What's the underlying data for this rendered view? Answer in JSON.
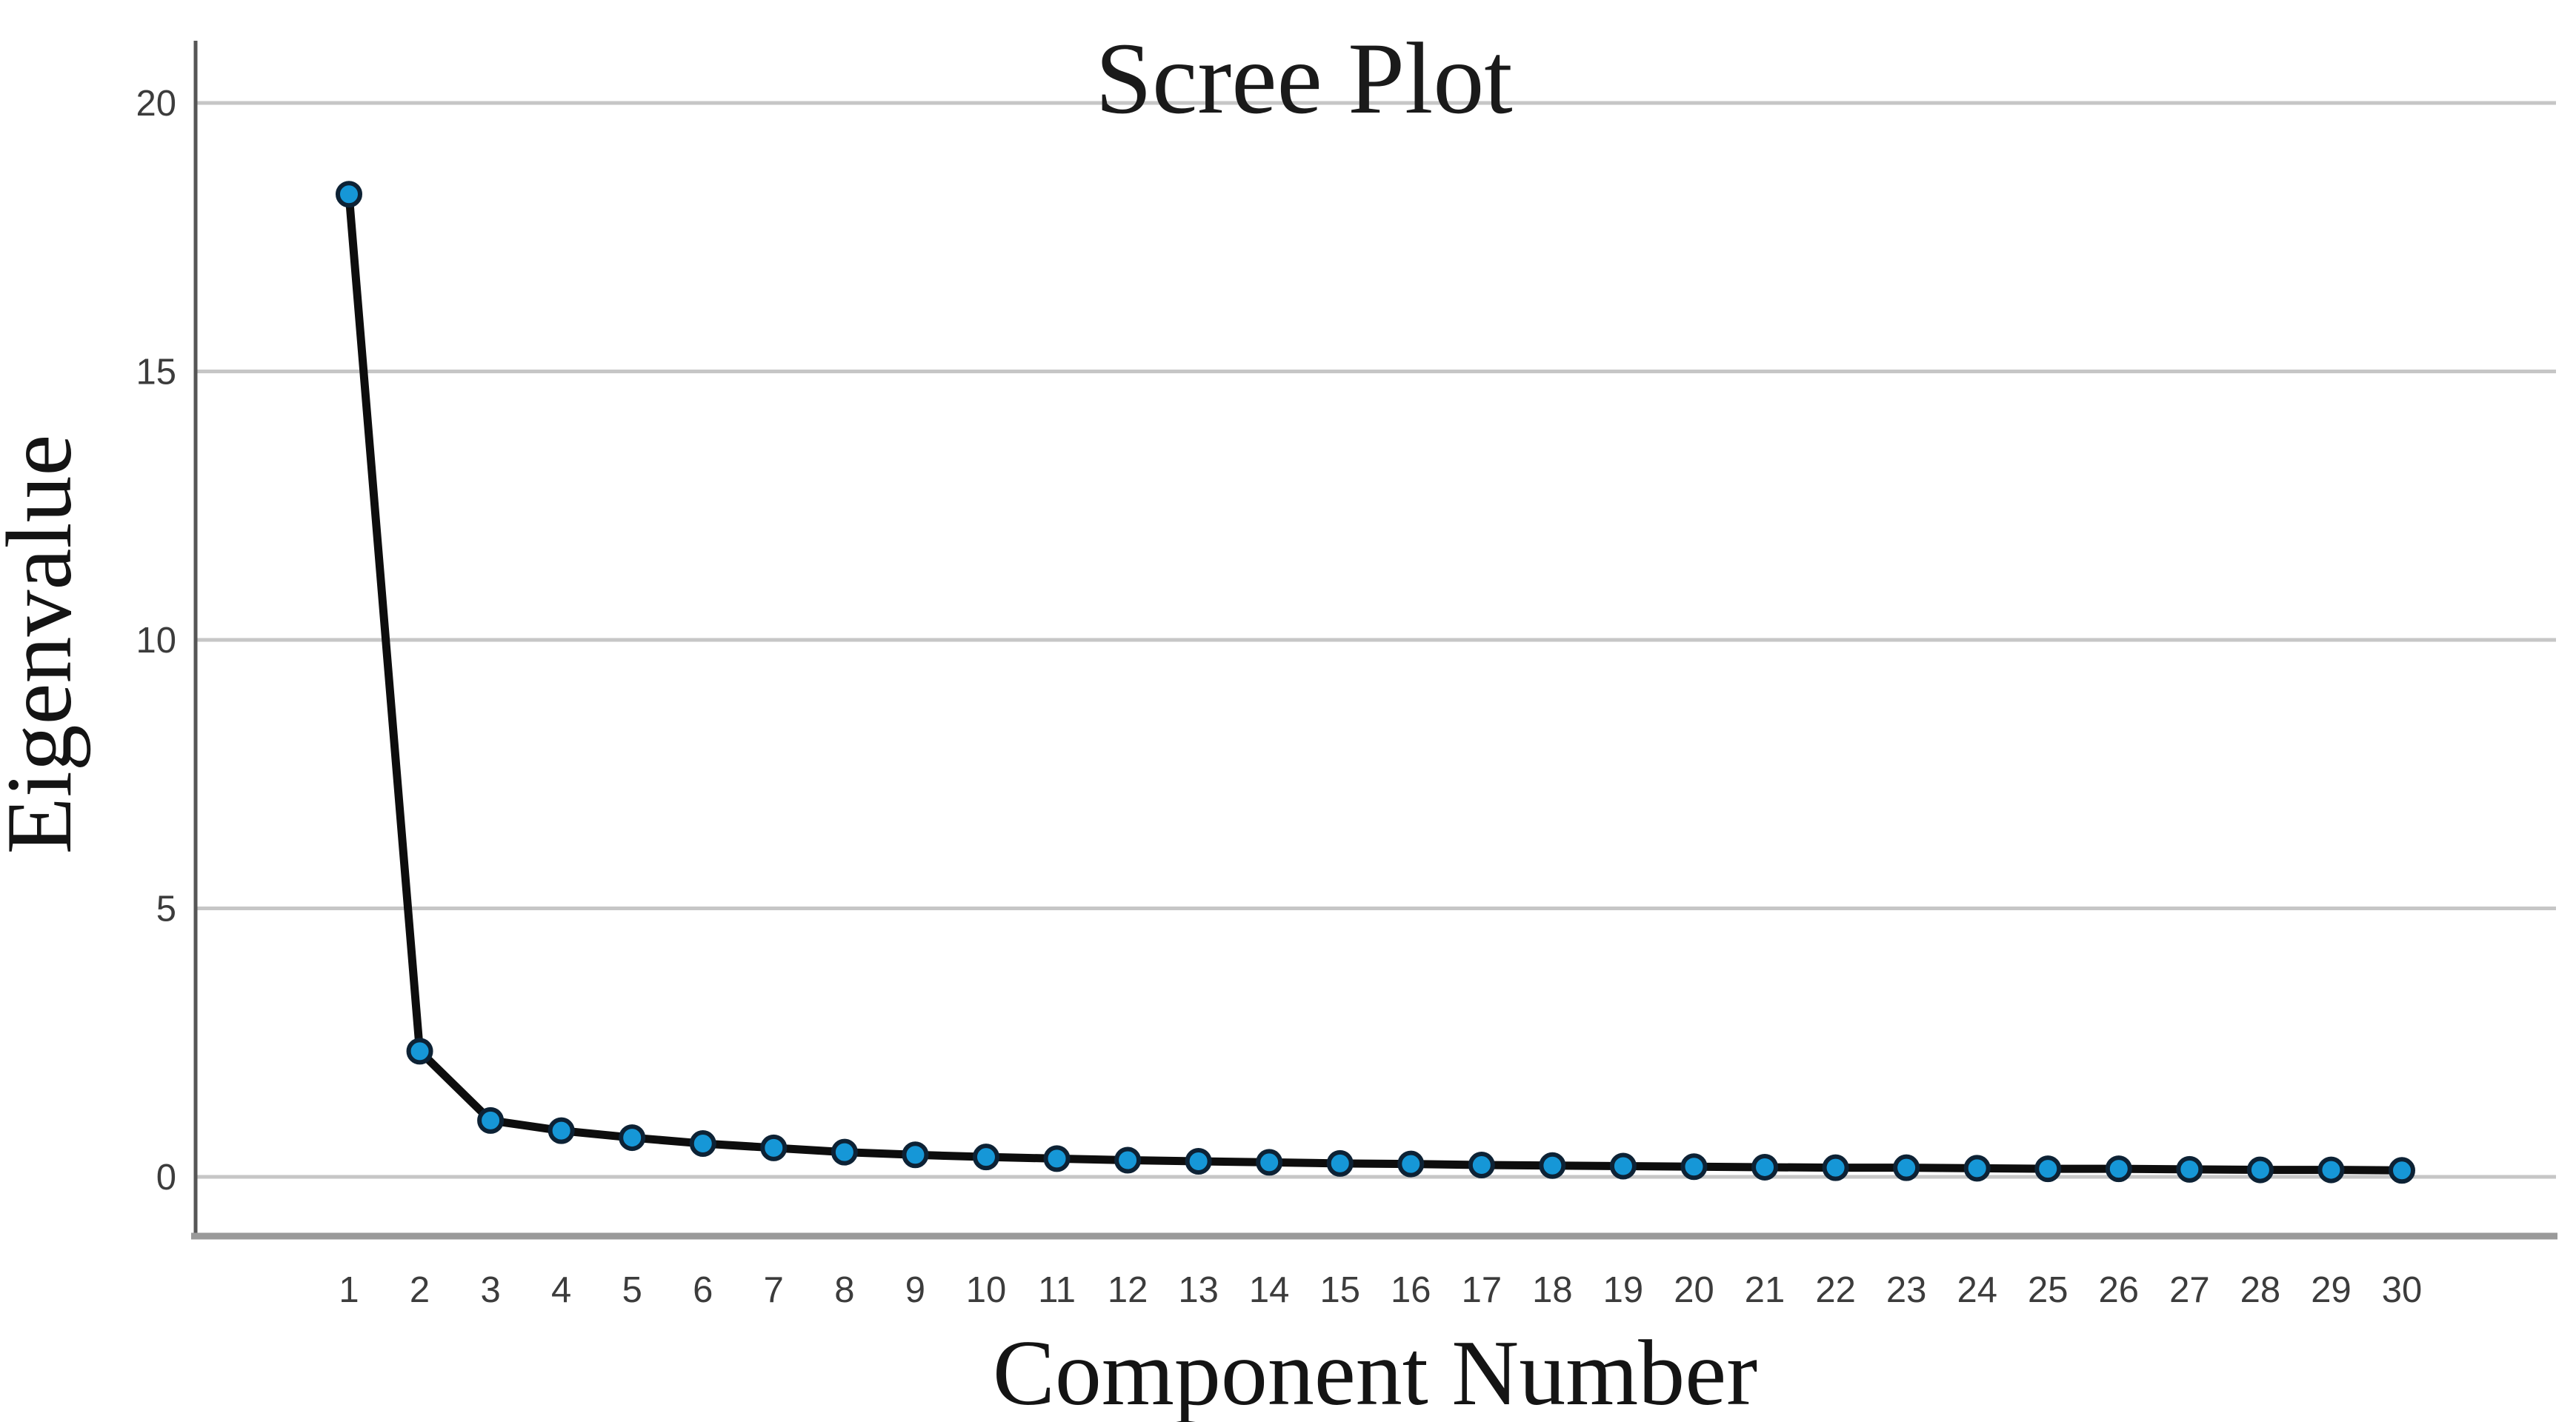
{
  "chart_data": {
    "type": "line",
    "title": "Scree Plot",
    "xlabel": "Component Number",
    "ylabel": "Eigenvalue",
    "x": [
      1,
      2,
      3,
      4,
      5,
      6,
      7,
      8,
      9,
      10,
      11,
      12,
      13,
      14,
      15,
      16,
      17,
      18,
      19,
      20,
      21,
      22,
      23,
      24,
      25,
      26,
      27,
      28,
      29,
      30
    ],
    "series": [
      {
        "name": "Eigenvalue",
        "values": [
          18.3,
          2.34,
          1.05,
          0.86,
          0.73,
          0.62,
          0.54,
          0.46,
          0.41,
          0.37,
          0.34,
          0.31,
          0.29,
          0.27,
          0.25,
          0.24,
          0.22,
          0.21,
          0.2,
          0.19,
          0.18,
          0.17,
          0.17,
          0.16,
          0.15,
          0.15,
          0.14,
          0.13,
          0.13,
          0.12
        ]
      }
    ],
    "y_ticks": [
      0,
      5,
      10,
      15,
      20
    ],
    "x_ticks": [
      1,
      2,
      3,
      4,
      5,
      6,
      7,
      8,
      9,
      10,
      11,
      12,
      13,
      14,
      15,
      16,
      17,
      18,
      19,
      20,
      21,
      22,
      23,
      24,
      25,
      26,
      27,
      28,
      29,
      30
    ],
    "ylim": [
      -1.1,
      21.2
    ],
    "xlim": [
      1,
      30
    ],
    "grid": "horizontal",
    "legend": "none",
    "colors": {
      "marker_fill": "#1697d7",
      "marker_stroke": "#0d2235",
      "line": "#0d0d0d",
      "grid": "#c6c6c6",
      "y_axis": "#565656",
      "x_axis_baseline": "#9a9a9a",
      "tick_label": "#3c3c3c",
      "text": "#1a1a1a",
      "background": "#ffffff"
    }
  }
}
